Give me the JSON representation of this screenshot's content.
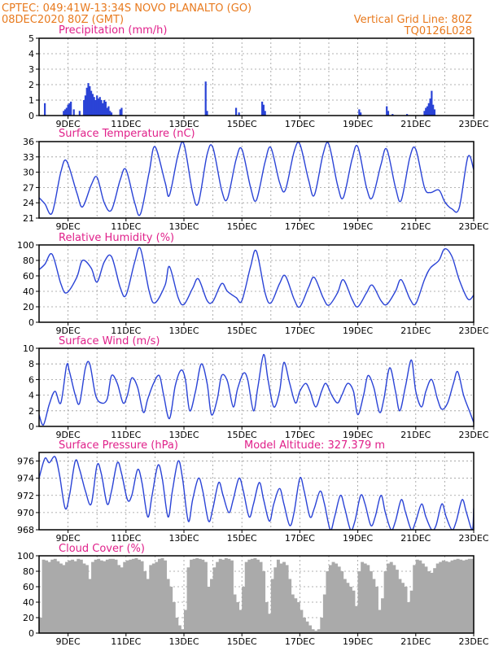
{
  "header": {
    "left_line1": "CPTEC:   049:41W-13:34S   NOVO PLANALTO (GO)",
    "left_line2": "08DEC2020 80Z (GMT)",
    "right_line1": "Vertical Grid Line: 80Z",
    "right_line2": "TQ0126L028"
  },
  "colors": {
    "series": "#2a43d6",
    "cloud": "#aaaaaa",
    "title": "#e0208a",
    "header": "#e87a1e"
  },
  "x_tick_labels": [
    "9DEC",
    "11DEC",
    "13DEC",
    "15DEC",
    "17DEC",
    "19DEC",
    "21DEC",
    "23DEC"
  ],
  "chart_data": [
    {
      "type": "bar",
      "title": "Precipitation (mm/h)",
      "xlabel": "",
      "ylabel": "",
      "ylim": [
        0,
        5
      ],
      "yticks": [
        0,
        1,
        2,
        3,
        4,
        5
      ],
      "x": [
        8.2,
        8.85,
        8.9,
        8.95,
        9.0,
        9.05,
        9.1,
        9.2,
        9.4,
        9.55,
        9.6,
        9.65,
        9.7,
        9.75,
        9.8,
        9.85,
        9.9,
        9.95,
        10.0,
        10.05,
        10.1,
        10.15,
        10.2,
        10.25,
        10.3,
        10.35,
        10.4,
        10.45,
        10.5,
        10.8,
        10.85,
        13.75,
        13.8,
        14.8,
        14.9,
        15.7,
        15.75,
        15.8,
        19.05,
        19.1,
        20.0,
        20.05,
        20.2,
        20.7,
        21.3,
        21.35,
        21.4,
        21.45,
        21.5,
        21.55,
        21.6,
        21.65
      ],
      "values": [
        0.8,
        0.3,
        0.4,
        0.5,
        0.7,
        0.8,
        0.9,
        0.4,
        0.3,
        1.0,
        1.3,
        1.8,
        2.1,
        1.9,
        1.6,
        1.4,
        1.2,
        1.0,
        1.3,
        1.1,
        1.2,
        1.0,
        0.8,
        1.0,
        0.9,
        0.5,
        0.6,
        0.3,
        0.2,
        0.4,
        0.5,
        2.2,
        0.3,
        0.5,
        0.2,
        0.9,
        0.7,
        0.3,
        0.4,
        0.2,
        0.6,
        0.3,
        0.1,
        0.1,
        0.3,
        0.5,
        0.6,
        0.8,
        1.1,
        1.6,
        0.7,
        0.4
      ]
    },
    {
      "type": "line",
      "title": "Surface Temperature (nC)",
      "xlabel": "",
      "ylabel": "",
      "ylim": [
        21,
        36
      ],
      "yticks": [
        21,
        24,
        27,
        30,
        33,
        36
      ],
      "x": [
        8.0,
        8.2,
        8.45,
        8.75,
        8.95,
        9.3,
        9.5,
        9.8,
        10.0,
        10.25,
        10.5,
        10.8,
        11.0,
        11.3,
        11.5,
        11.8,
        12.0,
        12.35,
        12.5,
        12.8,
        13.0,
        13.3,
        13.5,
        13.8,
        14.0,
        14.3,
        14.5,
        14.8,
        15.0,
        15.3,
        15.5,
        15.8,
        16.0,
        16.3,
        16.5,
        16.8,
        17.0,
        17.3,
        17.5,
        17.8,
        18.0,
        18.3,
        18.5,
        18.8,
        19.0,
        19.3,
        19.5,
        19.8,
        20.0,
        20.3,
        20.5,
        20.8,
        21.0,
        21.3,
        21.5,
        21.8,
        22.0,
        22.25,
        22.5,
        22.8,
        23.0
      ],
      "values": [
        25.0,
        23.8,
        22.0,
        30.0,
        32.2,
        26.0,
        23.2,
        27.5,
        29.0,
        24.0,
        22.6,
        28.5,
        30.5,
        24.0,
        21.8,
        30.0,
        35.0,
        28.0,
        25.5,
        33.5,
        35.5,
        26.0,
        24.0,
        33.5,
        34.8,
        26.5,
        24.8,
        32.5,
        34.5,
        27.0,
        24.5,
        32.0,
        34.8,
        28.0,
        26.5,
        34.0,
        35.5,
        28.5,
        25.5,
        33.5,
        35.5,
        27.5,
        25.0,
        32.5,
        35.0,
        27.0,
        25.0,
        31.5,
        34.5,
        27.0,
        24.5,
        33.0,
        34.5,
        27.0,
        26.0,
        26.5,
        24.2,
        22.8,
        23.0,
        33.0,
        30.5
      ]
    },
    {
      "type": "line",
      "title": "Relative Humidity (%)",
      "xlabel": "",
      "ylabel": "",
      "ylim": [
        0,
        100
      ],
      "yticks": [
        0,
        20,
        40,
        60,
        80,
        100
      ],
      "x": [
        8.0,
        8.2,
        8.45,
        8.75,
        8.95,
        9.3,
        9.5,
        9.8,
        10.0,
        10.25,
        10.5,
        10.8,
        11.0,
        11.3,
        11.5,
        11.8,
        12.0,
        12.35,
        12.5,
        12.8,
        13.0,
        13.3,
        13.5,
        13.8,
        14.0,
        14.3,
        14.5,
        14.8,
        15.0,
        15.3,
        15.5,
        15.8,
        16.0,
        16.3,
        16.5,
        16.8,
        17.0,
        17.3,
        17.5,
        17.8,
        18.0,
        18.3,
        18.5,
        18.8,
        19.0,
        19.3,
        19.5,
        19.8,
        20.0,
        20.3,
        20.5,
        20.8,
        21.0,
        21.3,
        21.5,
        21.8,
        22.0,
        22.25,
        22.5,
        22.8,
        23.0
      ],
      "values": [
        68.0,
        75.0,
        88.0,
        50.0,
        38.0,
        58.0,
        80.0,
        70.0,
        52.0,
        78.0,
        85.0,
        45.0,
        35.0,
        78.0,
        95.0,
        40.0,
        25.0,
        48.0,
        72.0,
        32.0,
        23.0,
        44.0,
        56.0,
        28.0,
        27.0,
        50.0,
        40.0,
        32.0,
        28.0,
        72.0,
        92.0,
        38.0,
        25.0,
        50.0,
        60.0,
        30.0,
        20.0,
        45.0,
        58.0,
        32.0,
        22.0,
        38.0,
        55.0,
        30.0,
        20.0,
        38.0,
        48.0,
        28.0,
        23.0,
        40.0,
        55.0,
        30.0,
        24.0,
        55.0,
        70.0,
        80.0,
        95.0,
        85.0,
        55.0,
        30.0,
        35.0
      ]
    },
    {
      "type": "line",
      "title": "Surface Wind (m/s)",
      "xlabel": "",
      "ylabel": "",
      "ylim": [
        0,
        10
      ],
      "yticks": [
        0,
        2,
        4,
        6,
        8,
        10
      ],
      "x": [
        8.0,
        8.15,
        8.35,
        8.55,
        8.75,
        8.95,
        9.05,
        9.25,
        9.4,
        9.6,
        9.75,
        9.95,
        10.15,
        10.35,
        10.5,
        10.7,
        10.9,
        11.05,
        11.2,
        11.4,
        11.6,
        11.75,
        11.95,
        12.15,
        12.3,
        12.5,
        12.7,
        12.9,
        13.05,
        13.2,
        13.4,
        13.6,
        13.8,
        13.95,
        14.15,
        14.3,
        14.5,
        14.7,
        14.85,
        15.05,
        15.2,
        15.4,
        15.55,
        15.75,
        15.9,
        16.1,
        16.3,
        16.45,
        16.65,
        16.85,
        17.0,
        17.2,
        17.35,
        17.55,
        17.75,
        17.9,
        18.1,
        18.3,
        18.45,
        18.65,
        18.85,
        19.0,
        19.2,
        19.35,
        19.55,
        19.75,
        19.9,
        20.1,
        20.3,
        20.45,
        20.65,
        20.85,
        21.0,
        21.2,
        21.35,
        21.55,
        21.75,
        21.9,
        22.1,
        22.3,
        22.45,
        22.65,
        22.85,
        23.0
      ],
      "values": [
        1.5,
        0.2,
        2.8,
        4.5,
        3.0,
        7.8,
        7.0,
        4.0,
        3.0,
        7.5,
        8.0,
        4.0,
        3.0,
        3.5,
        6.5,
        5.5,
        3.0,
        4.0,
        6.2,
        5.0,
        1.8,
        3.5,
        5.5,
        6.5,
        4.0,
        1.0,
        5.2,
        7.2,
        6.0,
        2.0,
        4.5,
        8.0,
        5.5,
        1.5,
        3.5,
        6.5,
        5.8,
        2.5,
        4.8,
        6.8,
        6.0,
        2.0,
        5.0,
        9.2,
        6.0,
        2.5,
        4.5,
        8.2,
        5.5,
        3.0,
        4.5,
        5.5,
        4.5,
        2.5,
        4.5,
        5.5,
        4.0,
        3.0,
        4.0,
        5.5,
        4.5,
        1.5,
        4.0,
        6.5,
        5.0,
        1.8,
        3.5,
        7.5,
        4.5,
        2.0,
        5.2,
        8.5,
        4.5,
        2.5,
        4.5,
        6.0,
        3.5,
        2.2,
        3.0,
        5.5,
        7.0,
        4.0,
        2.0,
        0.5
      ]
    },
    {
      "type": "line",
      "title": "Surface Pressure (hPa)",
      "subtitle": "Model Altitude: 327.379 m",
      "xlabel": "",
      "ylabel": "",
      "ylim": [
        968,
        977
      ],
      "yticks": [
        968,
        970,
        972,
        974,
        976
      ],
      "x": [
        8.0,
        8.2,
        8.35,
        8.55,
        8.7,
        8.9,
        9.05,
        9.25,
        9.4,
        9.6,
        9.8,
        10.0,
        10.15,
        10.35,
        10.5,
        10.7,
        10.85,
        11.05,
        11.2,
        11.4,
        11.55,
        11.75,
        11.9,
        12.1,
        12.25,
        12.45,
        12.6,
        12.8,
        12.95,
        13.15,
        13.3,
        13.5,
        13.65,
        13.85,
        14.0,
        14.2,
        14.35,
        14.55,
        14.7,
        14.9,
        15.05,
        15.25,
        15.4,
        15.6,
        15.75,
        15.95,
        16.1,
        16.3,
        16.45,
        16.65,
        16.8,
        17.0,
        17.15,
        17.35,
        17.5,
        17.7,
        17.85,
        18.05,
        18.2,
        18.4,
        18.55,
        18.75,
        18.9,
        19.1,
        19.25,
        19.45,
        19.6,
        19.8,
        19.95,
        20.15,
        20.3,
        20.5,
        20.65,
        20.85,
        21.0,
        21.2,
        21.35,
        21.55,
        21.7,
        21.9,
        22.05,
        22.25,
        22.4,
        22.6,
        22.75,
        22.95,
        23.0
      ],
      "values": [
        974.0,
        976.3,
        975.8,
        976.5,
        974.5,
        970.5,
        972.0,
        976.0,
        975.0,
        972.5,
        971.0,
        975.5,
        974.5,
        971.0,
        972.5,
        975.8,
        974.5,
        971.5,
        972.0,
        975.0,
        973.5,
        969.5,
        972.0,
        975.5,
        974.0,
        969.5,
        972.5,
        976.0,
        974.0,
        969.0,
        971.5,
        974.0,
        972.5,
        969.0,
        970.5,
        973.5,
        972.0,
        970.0,
        971.5,
        974.0,
        972.5,
        969.5,
        971.0,
        973.5,
        971.5,
        969.0,
        971.0,
        972.8,
        971.0,
        968.5,
        970.0,
        974.0,
        972.5,
        969.5,
        970.5,
        972.5,
        971.0,
        968.0,
        969.5,
        972.0,
        970.5,
        968.0,
        969.0,
        972.0,
        971.0,
        968.5,
        969.5,
        972.0,
        970.0,
        968.0,
        969.0,
        971.5,
        970.0,
        968.0,
        969.0,
        971.0,
        969.5,
        968.0,
        968.5,
        971.0,
        969.5,
        968.0,
        969.0,
        971.5,
        970.0,
        968.0,
        970.5
      ]
    },
    {
      "type": "bar",
      "title": "Cloud Cover (%)",
      "xlabel": "",
      "ylabel": "",
      "ylim": [
        0,
        100
      ],
      "yticks": [
        0,
        20,
        40,
        60,
        80,
        100
      ],
      "x": [
        8.0,
        8.1,
        8.2,
        8.3,
        8.4,
        8.5,
        8.6,
        8.7,
        8.8,
        8.9,
        9.0,
        9.1,
        9.2,
        9.3,
        9.4,
        9.5,
        9.6,
        9.7,
        9.8,
        9.9,
        10.0,
        10.1,
        10.2,
        10.3,
        10.4,
        10.5,
        10.6,
        10.7,
        10.8,
        10.9,
        11.0,
        11.1,
        11.2,
        11.3,
        11.4,
        11.5,
        11.6,
        11.7,
        11.8,
        11.9,
        12.0,
        12.1,
        12.2,
        12.3,
        12.4,
        12.5,
        12.6,
        12.7,
        12.8,
        12.9,
        13.0,
        13.1,
        13.2,
        13.3,
        13.4,
        13.5,
        13.6,
        13.7,
        13.8,
        13.9,
        14.0,
        14.1,
        14.2,
        14.3,
        14.4,
        14.5,
        14.6,
        14.7,
        14.8,
        14.9,
        15.0,
        15.1,
        15.2,
        15.3,
        15.4,
        15.5,
        15.6,
        15.7,
        15.8,
        15.9,
        16.0,
        16.1,
        16.2,
        16.3,
        16.4,
        16.5,
        16.6,
        16.7,
        16.8,
        16.9,
        17.0,
        17.1,
        17.2,
        17.3,
        17.4,
        17.5,
        17.6,
        17.7,
        17.8,
        17.9,
        18.0,
        18.1,
        18.2,
        18.3,
        18.4,
        18.5,
        18.6,
        18.7,
        18.8,
        18.9,
        19.0,
        19.1,
        19.2,
        19.3,
        19.4,
        19.5,
        19.6,
        19.7,
        19.8,
        19.9,
        20.0,
        20.1,
        20.2,
        20.3,
        20.4,
        20.5,
        20.6,
        20.7,
        20.8,
        20.9,
        21.0,
        21.1,
        21.2,
        21.3,
        21.4,
        21.5,
        21.6,
        21.7,
        21.8,
        21.9,
        22.0,
        22.1,
        22.2,
        22.3,
        22.4,
        22.5,
        22.6,
        22.7,
        22.8,
        22.9
      ],
      "values": [
        20,
        95,
        94,
        92,
        95,
        96,
        93,
        90,
        88,
        92,
        94,
        95,
        93,
        96,
        95,
        90,
        88,
        70,
        92,
        95,
        96,
        94,
        93,
        95,
        96,
        96,
        95,
        88,
        85,
        92,
        94,
        95,
        96,
        97,
        95,
        93,
        80,
        70,
        88,
        90,
        92,
        96,
        97,
        94,
        70,
        60,
        40,
        20,
        10,
        5,
        30,
        85,
        95,
        96,
        97,
        96,
        95,
        92,
        60,
        70,
        85,
        92,
        96,
        95,
        97,
        96,
        94,
        50,
        40,
        30,
        60,
        92,
        95,
        96,
        97,
        95,
        92,
        80,
        40,
        25,
        70,
        85,
        95,
        90,
        92,
        88,
        70,
        50,
        45,
        40,
        30,
        20,
        15,
        10,
        5,
        3,
        5,
        20,
        50,
        80,
        88,
        92,
        90,
        86,
        80,
        70,
        65,
        60,
        55,
        35,
        80,
        92,
        90,
        88,
        80,
        70,
        60,
        30,
        45,
        80,
        90,
        92,
        88,
        82,
        70,
        65,
        60,
        40,
        55,
        88,
        95,
        94,
        90,
        86,
        80,
        78,
        84,
        90,
        92,
        94,
        93,
        92,
        94,
        95,
        96,
        95,
        94,
        95,
        96,
        96
      ]
    }
  ]
}
